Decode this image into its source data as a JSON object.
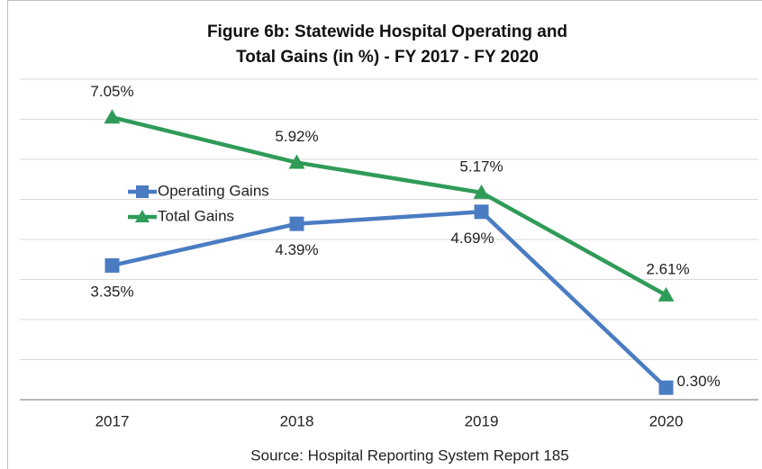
{
  "chart_data": {
    "type": "line",
    "title": [
      "Figure 6b: Statewide Hospital Operating and",
      "Total Gains (in %) - FY 2017 - FY 2020"
    ],
    "source": "Source: Hospital Reporting System Report 185",
    "categories": [
      "2017",
      "2018",
      "2019",
      "2020"
    ],
    "series": [
      {
        "name": "Operating Gains",
        "color": "#4a7cc2",
        "marker": "square",
        "values": [
          3.35,
          4.39,
          4.69,
          0.3
        ],
        "value_labels": [
          "3.35%",
          "4.39%",
          "4.69%",
          "0.30%"
        ]
      },
      {
        "name": "Total Gains",
        "color": "#2f9b58",
        "marker": "triangle",
        "values": [
          7.05,
          5.92,
          5.17,
          2.61
        ],
        "value_labels": [
          "7.05%",
          "5.92%",
          "5.17%",
          "2.61%"
        ]
      }
    ],
    "ylim": [
      0,
      8
    ],
    "yticks": [
      0,
      1,
      2,
      3,
      4,
      5,
      6,
      7,
      8
    ],
    "show_ytick_labels": false,
    "grid": true,
    "legend_position": "center-left"
  }
}
